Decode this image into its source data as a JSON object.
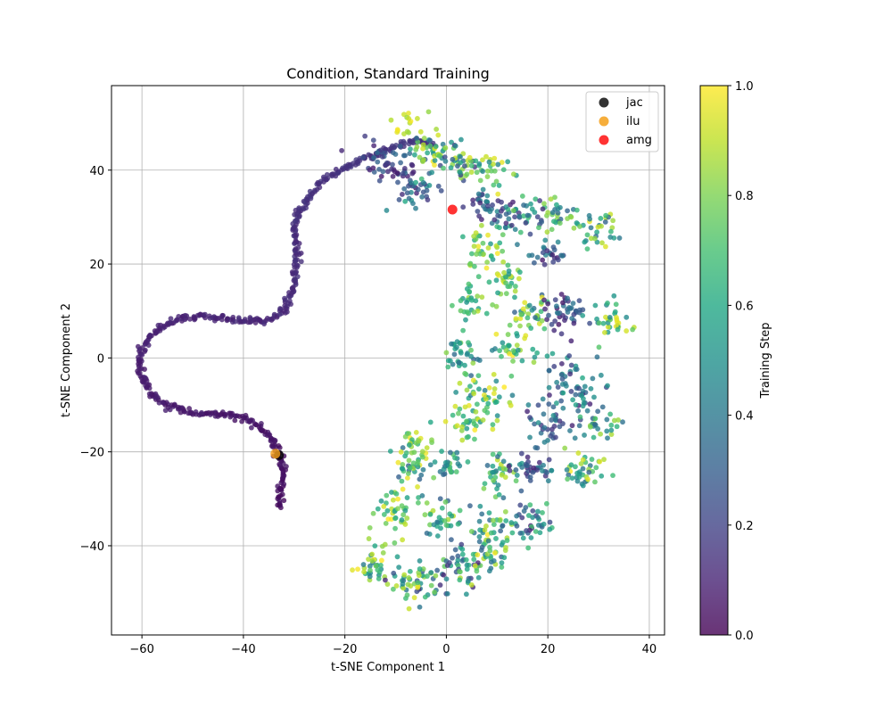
{
  "chart_data": {
    "type": "scatter",
    "title": "Condition, Standard Training",
    "xlabel": "t-SNE Component 1",
    "ylabel": "t-SNE Component 2",
    "xlim": [
      -66,
      43
    ],
    "ylim": [
      -59,
      58
    ],
    "xticks": [
      -60,
      -40,
      -20,
      0,
      20,
      40
    ],
    "yticks": [
      -40,
      -20,
      0,
      20,
      40
    ],
    "xtick_labels": [
      "−60",
      "−40",
      "−20",
      "0",
      "20",
      "40"
    ],
    "ytick_labels": [
      "−40",
      "−20",
      "0",
      "20",
      "40"
    ],
    "grid": true,
    "colorbar": {
      "label": "Training Step",
      "min": 0.0,
      "max": 1.0,
      "ticks": [
        0.0,
        0.2,
        0.4,
        0.6,
        0.8,
        1.0
      ],
      "tick_labels": [
        "0.0",
        "0.2",
        "0.4",
        "0.6",
        "0.8",
        "1.0"
      ],
      "colormap": "viridis"
    },
    "legend_position": "top-right",
    "legend": [
      {
        "name": "jac",
        "color": "#000000"
      },
      {
        "name": "ilu",
        "color": "#f5a01a"
      },
      {
        "name": "amg",
        "color": "#ff0000"
      }
    ],
    "highlighted_points": [
      {
        "name": "jac",
        "x": -33.0,
        "y": -20.7,
        "color": "#000000"
      },
      {
        "name": "ilu",
        "x": -33.7,
        "y": -20.4,
        "color": "#f5a01a"
      },
      {
        "name": "amg",
        "x": 1.2,
        "y": 31.6,
        "color": "#ff0000"
      }
    ],
    "trajectory": {
      "description": "early training steps (color ~0.0-0.1) form an S-shaped curve",
      "path": [
        [
          -33,
          -32
        ],
        [
          -32.5,
          -28
        ],
        [
          -32,
          -25
        ],
        [
          -32.5,
          -22
        ],
        [
          -33,
          -20.5
        ],
        [
          -34,
          -18
        ],
        [
          -36,
          -15
        ],
        [
          -40,
          -12.8
        ],
        [
          -45,
          -12
        ],
        [
          -50,
          -11.5
        ],
        [
          -54,
          -10.5
        ],
        [
          -56,
          -9.5
        ],
        [
          -58,
          -7.5
        ],
        [
          -60,
          -4
        ],
        [
          -60.5,
          -1
        ],
        [
          -60,
          2
        ],
        [
          -58.5,
          4.5
        ],
        [
          -56,
          6.5
        ],
        [
          -53,
          8.2
        ],
        [
          -49,
          8.8
        ],
        [
          -45,
          8.5
        ],
        [
          -40,
          7.9
        ],
        [
          -36,
          7.8
        ],
        [
          -33,
          9
        ],
        [
          -31,
          12
        ],
        [
          -30,
          16
        ],
        [
          -29.5,
          20
        ],
        [
          -29.5,
          24
        ],
        [
          -30,
          28
        ],
        [
          -29.5,
          31
        ],
        [
          -27,
          34.5
        ],
        [
          -24,
          38
        ],
        [
          -20,
          40.5
        ],
        [
          -15,
          43
        ],
        [
          -10,
          45
        ],
        [
          -6,
          46.5
        ],
        [
          -2,
          45
        ]
      ]
    },
    "clusters": [
      {
        "cx": -12,
        "cy": 41,
        "r": 5,
        "n": 55,
        "c": [
          0.05,
          0.35
        ]
      },
      {
        "cx": -4,
        "cy": 44,
        "r": 4,
        "n": 35,
        "c": [
          0.2,
          1.0
        ]
      },
      {
        "cx": 2,
        "cy": 42,
        "r": 4,
        "n": 40,
        "c": [
          0.15,
          0.9
        ]
      },
      {
        "cx": 8,
        "cy": 40,
        "r": 4,
        "n": 35,
        "c": [
          0.4,
          1.0
        ]
      },
      {
        "cx": -6,
        "cy": 36,
        "r": 4,
        "n": 35,
        "c": [
          0.1,
          0.6
        ]
      },
      {
        "cx": 8,
        "cy": 33,
        "r": 4,
        "n": 40,
        "c": [
          0.1,
          0.5
        ]
      },
      {
        "cx": 15,
        "cy": 30,
        "r": 4,
        "n": 40,
        "c": [
          0.1,
          0.8
        ]
      },
      {
        "cx": -8,
        "cy": 50,
        "r": 2.5,
        "n": 15,
        "c": [
          0.8,
          1.0
        ]
      },
      {
        "cx": 22,
        "cy": 30,
        "r": 3.5,
        "n": 30,
        "c": [
          0.3,
          0.9
        ]
      },
      {
        "cx": 30,
        "cy": 27,
        "r": 4,
        "n": 35,
        "c": [
          0.3,
          1.0
        ]
      },
      {
        "cx": 20,
        "cy": 22,
        "r": 3,
        "n": 25,
        "c": [
          0.05,
          0.5
        ]
      },
      {
        "cx": 8,
        "cy": 23,
        "r": 4,
        "n": 40,
        "c": [
          0.5,
          1.0
        ]
      },
      {
        "cx": 12,
        "cy": 17,
        "r": 3,
        "n": 25,
        "c": [
          0.5,
          1.0
        ]
      },
      {
        "cx": 5,
        "cy": 12,
        "r": 3.5,
        "n": 30,
        "c": [
          0.5,
          0.9
        ]
      },
      {
        "cx": 17,
        "cy": 10,
        "r": 4,
        "n": 35,
        "c": [
          0.3,
          1.0
        ]
      },
      {
        "cx": 24,
        "cy": 10,
        "r": 4,
        "n": 45,
        "c": [
          0.05,
          0.4
        ]
      },
      {
        "cx": 32,
        "cy": 8,
        "r": 4,
        "n": 35,
        "c": [
          0.4,
          1.0
        ]
      },
      {
        "cx": 3,
        "cy": 0,
        "r": 4,
        "n": 40,
        "c": [
          0.3,
          0.9
        ]
      },
      {
        "cx": 14,
        "cy": 2,
        "r": 4,
        "n": 35,
        "c": [
          0.5,
          1.0
        ]
      },
      {
        "cx": 25,
        "cy": -5,
        "r": 5,
        "n": 55,
        "c": [
          0.1,
          0.6
        ]
      },
      {
        "cx": 8,
        "cy": -8,
        "r": 4,
        "n": 40,
        "c": [
          0.4,
          1.0
        ]
      },
      {
        "cx": 4,
        "cy": -14,
        "r": 3.5,
        "n": 30,
        "c": [
          0.5,
          1.0
        ]
      },
      {
        "cx": 20,
        "cy": -13,
        "r": 4,
        "n": 40,
        "c": [
          0.1,
          0.5
        ]
      },
      {
        "cx": 30,
        "cy": -14,
        "r": 3.5,
        "n": 30,
        "c": [
          0.3,
          0.9
        ]
      },
      {
        "cx": -6,
        "cy": -18,
        "r": 3.5,
        "n": 30,
        "c": [
          0.5,
          1.0
        ]
      },
      {
        "cx": -7,
        "cy": -24,
        "r": 3.5,
        "n": 30,
        "c": [
          0.3,
          1.0
        ]
      },
      {
        "cx": 1,
        "cy": -23,
        "r": 3,
        "n": 25,
        "c": [
          0.3,
          0.8
        ]
      },
      {
        "cx": 10,
        "cy": -25,
        "r": 4,
        "n": 35,
        "c": [
          0.3,
          0.9
        ]
      },
      {
        "cx": 17,
        "cy": -24,
        "r": 4,
        "n": 40,
        "c": [
          0.1,
          0.5
        ]
      },
      {
        "cx": 27,
        "cy": -24,
        "r": 4,
        "n": 40,
        "c": [
          0.3,
          1.0
        ]
      },
      {
        "cx": -10,
        "cy": -33,
        "r": 4,
        "n": 40,
        "c": [
          0.5,
          1.0
        ]
      },
      {
        "cx": -1,
        "cy": -34,
        "r": 4,
        "n": 35,
        "c": [
          0.3,
          0.9
        ]
      },
      {
        "cx": 8,
        "cy": -36,
        "r": 4,
        "n": 35,
        "c": [
          0.3,
          1.0
        ]
      },
      {
        "cx": 17,
        "cy": -35,
        "r": 4,
        "n": 40,
        "c": [
          0.1,
          0.7
        ]
      },
      {
        "cx": -14,
        "cy": -44,
        "r": 4,
        "n": 40,
        "c": [
          0.4,
          1.0
        ]
      },
      {
        "cx": -6,
        "cy": -48,
        "r": 4.5,
        "n": 50,
        "c": [
          0.1,
          1.0
        ]
      },
      {
        "cx": 3,
        "cy": -45,
        "r": 4.5,
        "n": 50,
        "c": [
          0.1,
          0.9
        ]
      },
      {
        "cx": 9,
        "cy": -42,
        "r": 3.5,
        "n": 30,
        "c": [
          0.3,
          1.0
        ]
      }
    ]
  }
}
